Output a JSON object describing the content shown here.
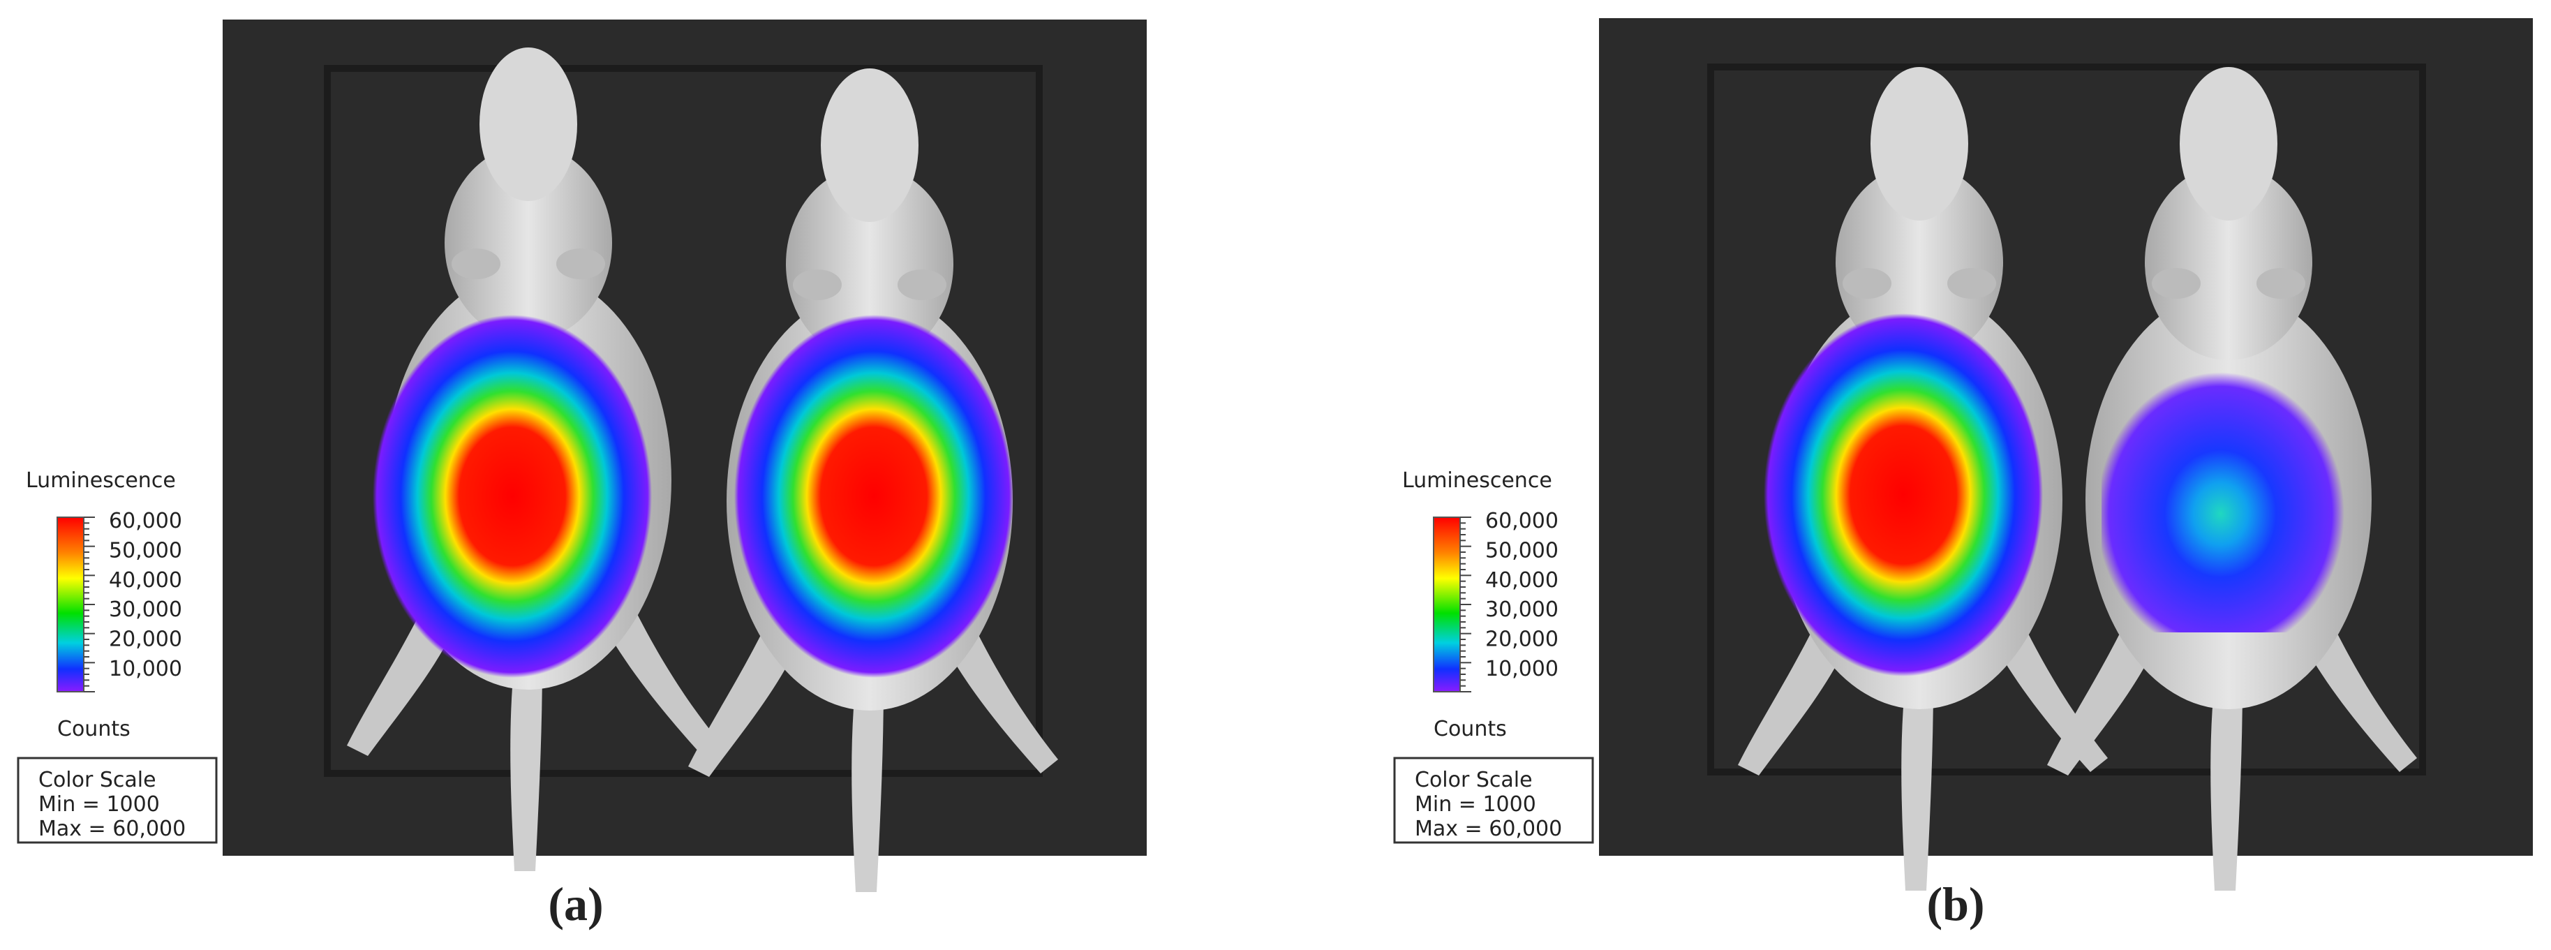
{
  "panels": [
    {
      "label": "(a)",
      "legend": {
        "title": "Luminescence",
        "ticks": [
          "60,000",
          "50,000",
          "40,000",
          "30,000",
          "20,000",
          "10,000"
        ],
        "unit": "Counts",
        "box": [
          "Color Scale",
          "Min = 1000",
          "Max = 60,000"
        ]
      }
    },
    {
      "label": "(b)",
      "legend": {
        "title": "Luminescence",
        "ticks": [
          "60,000",
          "50,000",
          "40,000",
          "30,000",
          "20,000",
          "10,000"
        ],
        "unit": "Counts",
        "box": [
          "Color Scale",
          "Min = 1000",
          "Max = 60,000"
        ]
      }
    }
  ]
}
